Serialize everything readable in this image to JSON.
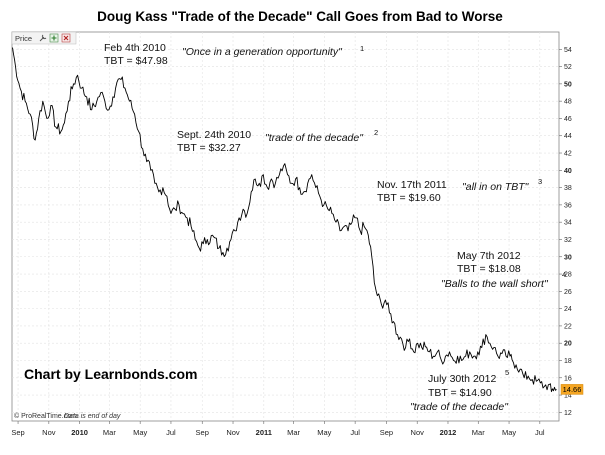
{
  "chart_data": {
    "type": "line",
    "title": "Doug Kass \"Trade of the Decade\" Call Goes from Bad to Worse",
    "xlabel": "",
    "ylabel": "",
    "ylim": [
      11,
      56
    ],
    "yticks": [
      12,
      14,
      16,
      18,
      20,
      22,
      24,
      26,
      28,
      30,
      32,
      34,
      36,
      38,
      40,
      42,
      44,
      46,
      48,
      50,
      52,
      54
    ],
    "bold_yticks": [
      20,
      30,
      40,
      50
    ],
    "xlim": [
      "2009-08-20",
      "2012-08-08"
    ],
    "xticks": [
      {
        "date": "2009-09-01",
        "label": "Sep",
        "bold": false
      },
      {
        "date": "2009-11-01",
        "label": "Nov",
        "bold": false
      },
      {
        "date": "2010-01-01",
        "label": "2010",
        "bold": true
      },
      {
        "date": "2010-03-01",
        "label": "Mar",
        "bold": false
      },
      {
        "date": "2010-05-01",
        "label": "May",
        "bold": false
      },
      {
        "date": "2010-07-01",
        "label": "Jul",
        "bold": false
      },
      {
        "date": "2010-09-01",
        "label": "Sep",
        "bold": false
      },
      {
        "date": "2010-11-01",
        "label": "Nov",
        "bold": false
      },
      {
        "date": "2011-01-01",
        "label": "2011",
        "bold": true
      },
      {
        "date": "2011-03-01",
        "label": "Mar",
        "bold": false
      },
      {
        "date": "2011-05-01",
        "label": "May",
        "bold": false
      },
      {
        "date": "2011-07-01",
        "label": "Jul",
        "bold": false
      },
      {
        "date": "2011-09-01",
        "label": "Sep",
        "bold": false
      },
      {
        "date": "2011-11-01",
        "label": "Nov",
        "bold": false
      },
      {
        "date": "2012-01-01",
        "label": "2012",
        "bold": true
      },
      {
        "date": "2012-03-01",
        "label": "Mar",
        "bold": false
      },
      {
        "date": "2012-05-01",
        "label": "May",
        "bold": false
      },
      {
        "date": "2012-07-01",
        "label": "Jul",
        "bold": false
      }
    ],
    "grid": true,
    "last_value": {
      "value": 14.66,
      "label": "14.66"
    },
    "series": [
      {
        "name": "",
        "color": "#000000",
        "points": [
          [
            "2009-08-21",
            54.2
          ],
          [
            "2009-08-27",
            52.0
          ],
          [
            "2009-09-05",
            49.5
          ],
          [
            "2009-09-15",
            48.0
          ],
          [
            "2009-09-25",
            46.5
          ],
          [
            "2009-10-05",
            43.5
          ],
          [
            "2009-10-12",
            46.0
          ],
          [
            "2009-10-20",
            48.0
          ],
          [
            "2009-10-28",
            46.0
          ],
          [
            "2009-11-05",
            47.5
          ],
          [
            "2009-11-15",
            45.0
          ],
          [
            "2009-11-25",
            44.5
          ],
          [
            "2009-12-02",
            45.5
          ],
          [
            "2009-12-10",
            48.0
          ],
          [
            "2009-12-20",
            50.0
          ],
          [
            "2009-12-28",
            51.0
          ],
          [
            "2010-01-05",
            49.5
          ],
          [
            "2010-01-15",
            48.5
          ],
          [
            "2010-01-25",
            47.0
          ],
          [
            "2010-02-04",
            47.98
          ],
          [
            "2010-02-12",
            49.0
          ],
          [
            "2010-02-20",
            48.0
          ],
          [
            "2010-02-28",
            47.0
          ],
          [
            "2010-03-08",
            48.5
          ],
          [
            "2010-03-16",
            50.2
          ],
          [
            "2010-03-24",
            50.5
          ],
          [
            "2010-04-01",
            49.5
          ],
          [
            "2010-04-10",
            48.0
          ],
          [
            "2010-04-20",
            46.5
          ],
          [
            "2010-04-28",
            44.5
          ],
          [
            "2010-05-06",
            42.5
          ],
          [
            "2010-05-14",
            41.0
          ],
          [
            "2010-05-22",
            40.0
          ],
          [
            "2010-05-30",
            38.5
          ],
          [
            "2010-06-07",
            37.5
          ],
          [
            "2010-06-15",
            38.0
          ],
          [
            "2010-06-23",
            37.0
          ],
          [
            "2010-07-01",
            35.0
          ],
          [
            "2010-07-09",
            35.5
          ],
          [
            "2010-07-17",
            36.0
          ],
          [
            "2010-07-25",
            35.0
          ],
          [
            "2010-08-02",
            34.5
          ],
          [
            "2010-08-10",
            33.5
          ],
          [
            "2010-08-18",
            32.0
          ],
          [
            "2010-08-26",
            31.0
          ],
          [
            "2010-09-03",
            31.5
          ],
          [
            "2010-09-11",
            32.0
          ],
          [
            "2010-09-24",
            32.27
          ],
          [
            "2010-10-04",
            31.0
          ],
          [
            "2010-10-12",
            30.5
          ],
          [
            "2010-10-20",
            31.0
          ],
          [
            "2010-10-28",
            32.0
          ],
          [
            "2010-11-05",
            33.0
          ],
          [
            "2010-11-13",
            34.5
          ],
          [
            "2010-11-21",
            35.5
          ],
          [
            "2010-11-29",
            35.0
          ],
          [
            "2010-12-07",
            37.5
          ],
          [
            "2010-12-15",
            39.0
          ],
          [
            "2010-12-23",
            38.5
          ],
          [
            "2010-12-31",
            39.5
          ],
          [
            "2011-01-08",
            38.0
          ],
          [
            "2011-01-16",
            39.0
          ],
          [
            "2011-01-24",
            38.5
          ],
          [
            "2011-02-01",
            39.5
          ],
          [
            "2011-02-09",
            40.5
          ],
          [
            "2011-02-17",
            39.5
          ],
          [
            "2011-02-25",
            38.5
          ],
          [
            "2011-03-05",
            39.0
          ],
          [
            "2011-03-13",
            38.0
          ],
          [
            "2011-03-21",
            37.5
          ],
          [
            "2011-03-29",
            38.5
          ],
          [
            "2011-04-06",
            39.5
          ],
          [
            "2011-04-14",
            38.0
          ],
          [
            "2011-04-22",
            37.0
          ],
          [
            "2011-04-30",
            36.0
          ],
          [
            "2011-05-08",
            35.5
          ],
          [
            "2011-05-16",
            35.0
          ],
          [
            "2011-05-24",
            34.0
          ],
          [
            "2011-06-01",
            33.0
          ],
          [
            "2011-06-09",
            33.5
          ],
          [
            "2011-06-17",
            33.0
          ],
          [
            "2011-06-25",
            34.0
          ],
          [
            "2011-07-03",
            34.5
          ],
          [
            "2011-07-11",
            33.0
          ],
          [
            "2011-07-19",
            33.5
          ],
          [
            "2011-07-27",
            32.5
          ],
          [
            "2011-08-03",
            30.0
          ],
          [
            "2011-08-08",
            27.0
          ],
          [
            "2011-08-14",
            25.5
          ],
          [
            "2011-08-22",
            24.5
          ],
          [
            "2011-08-30",
            25.0
          ],
          [
            "2011-09-07",
            23.5
          ],
          [
            "2011-09-15",
            22.5
          ],
          [
            "2011-09-23",
            21.0
          ],
          [
            "2011-10-01",
            20.5
          ],
          [
            "2011-10-09",
            19.5
          ],
          [
            "2011-10-17",
            20.5
          ],
          [
            "2011-10-25",
            19.0
          ],
          [
            "2011-11-02",
            20.0
          ],
          [
            "2011-11-10",
            19.5
          ],
          [
            "2011-11-17",
            19.6
          ],
          [
            "2011-11-25",
            19.0
          ],
          [
            "2011-12-03",
            18.5
          ],
          [
            "2011-12-11",
            19.0
          ],
          [
            "2011-12-19",
            18.0
          ],
          [
            "2011-12-27",
            18.5
          ],
          [
            "2012-01-04",
            19.0
          ],
          [
            "2012-01-12",
            18.0
          ],
          [
            "2012-01-20",
            18.5
          ],
          [
            "2012-01-28",
            18.0
          ],
          [
            "2012-02-05",
            18.5
          ],
          [
            "2012-02-13",
            19.0
          ],
          [
            "2012-02-21",
            18.5
          ],
          [
            "2012-02-29",
            19.0
          ],
          [
            "2012-03-08",
            19.5
          ],
          [
            "2012-03-16",
            21.0
          ],
          [
            "2012-03-24",
            20.0
          ],
          [
            "2012-04-01",
            19.5
          ],
          [
            "2012-04-09",
            18.5
          ],
          [
            "2012-04-17",
            18.8
          ],
          [
            "2012-04-25",
            18.5
          ],
          [
            "2012-05-03",
            18.5
          ],
          [
            "2012-05-07",
            18.08
          ],
          [
            "2012-05-15",
            17.5
          ],
          [
            "2012-05-23",
            17.0
          ],
          [
            "2012-05-31",
            16.0
          ],
          [
            "2012-06-08",
            16.2
          ],
          [
            "2012-06-16",
            15.8
          ],
          [
            "2012-06-24",
            15.6
          ],
          [
            "2012-07-02",
            15.4
          ],
          [
            "2012-07-10",
            15.0
          ],
          [
            "2012-07-18",
            15.2
          ],
          [
            "2012-07-24",
            14.4
          ],
          [
            "2012-07-30",
            14.9
          ],
          [
            "2012-08-03",
            14.66
          ]
        ]
      }
    ],
    "annotations": [
      {
        "lines": [
          "Feb 4th 2010",
          "TBT = $47.98"
        ],
        "quote": "\"Once in a generation opportunity\"",
        "num": "1"
      },
      {
        "lines": [
          "Sept. 24th 2010",
          "TBT = $32.27"
        ],
        "quote": "\"trade of the decade\"",
        "num": "2"
      },
      {
        "lines": [
          "Nov. 17th 2011",
          "TBT = $19.60"
        ],
        "quote": "\"all in on TBT\"",
        "num": "3"
      },
      {
        "lines": [
          "May 7th 2012",
          "TBT = $18.08"
        ],
        "quote": "\"Balls to the wall short\"",
        "num": "4"
      },
      {
        "lines": [
          "July 30th 2012",
          "TBT = $14.90"
        ],
        "quote": "\"trade of the decade\"",
        "num": "5"
      }
    ],
    "credit": "Chart by Learnbonds.com",
    "source": "© ProRealTime.com",
    "source_note": "Data is end of day",
    "price_label": "Price"
  }
}
